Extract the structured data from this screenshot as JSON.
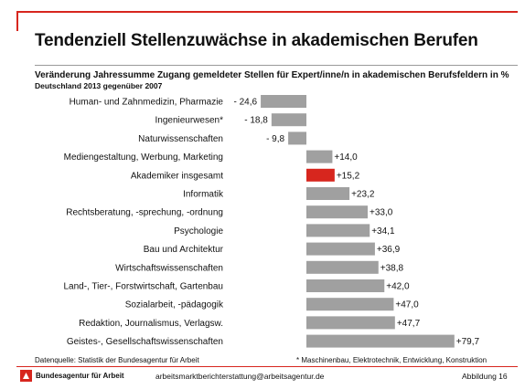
{
  "title": "Tendenziell Stellenzuwächse in akademischen Berufen",
  "subtitle": "Veränderung Jahressumme Zugang gemeldeter Stellen für Expert/inne/n in akademischen Berufsfeldern in %",
  "subtitle2": "Deutschland 2013 gegenüber 2007",
  "source": "Datenquelle: Statistik der Bundesagentur für Arbeit",
  "footnote": "* Maschinenbau, Elektrotechnik, Entwicklung, Konstruktion",
  "logo_text": "Bundesagentur für Arbeit",
  "email": "arbeitsmarktberichterstattung@arbeitsagentur.de",
  "figure_number": "Abbildung 16",
  "colors": {
    "bar": "#a0a0a0",
    "highlight": "#d7261e",
    "accent": "#d7261e"
  },
  "chart_data": {
    "type": "bar",
    "orientation": "horizontal",
    "categories": [
      "Human- und Zahnmedizin, Pharmazie",
      "Ingenieurwesen*",
      "Naturwissenschaften",
      "Mediengestaltung, Werbung, Marketing",
      "Akademiker insgesamt",
      "Informatik",
      "Rechtsberatung, -sprechung, -ordnung",
      "Psychologie",
      "Bau und Architektur",
      "Wirtschaftswissenschaften",
      "Land-, Tier-, Forstwirtschaft, Gartenbau",
      "Sozialarbeit, -pädagogik",
      "Redaktion, Journalismus, Verlagsw.",
      "Geistes-, Gesellschaftswissenschaften"
    ],
    "values": [
      -24.6,
      -18.8,
      -9.8,
      14.0,
      15.2,
      23.2,
      33.0,
      34.1,
      36.9,
      38.8,
      42.0,
      47.0,
      47.7,
      79.7
    ],
    "value_labels": [
      "- 24,6",
      "- 18,8",
      "- 9,8",
      "+14,0",
      "+15,2",
      "+23,2",
      "+33,0",
      "+34,1",
      "+36,9",
      "+38,8",
      "+42,0",
      "+47,0",
      "+47,7",
      "+79,7"
    ],
    "highlight_index": 4,
    "xlim": [
      -25,
      80
    ],
    "grid": false,
    "legend": "none"
  }
}
